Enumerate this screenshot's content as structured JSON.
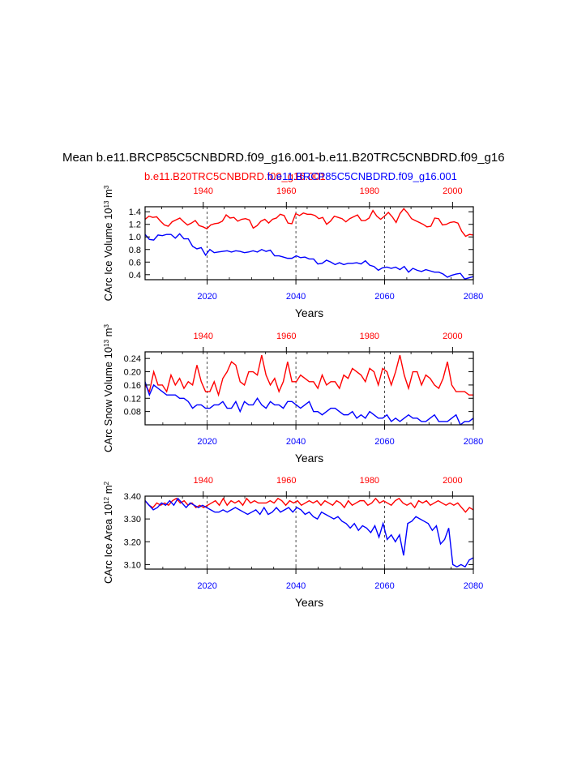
{
  "title": "Mean b.e11.BRCP85C5CNBDRD.f09_g16.001-b.e11.B20TRC5CNBDRD.f09_g16",
  "legend": {
    "red": "b.e11.B20TRC5CNBDRD.f09_g16.001",
    "blue": "b.e11.BRCP85C5CNBDRD.f09_g16.001"
  },
  "colors": {
    "red": "#ff0000",
    "blue": "#0000ff",
    "axis": "#000000"
  },
  "chart_data": [
    {
      "type": "line",
      "ylabel": "CArc Ice Volume 10",
      "ylabel_sup": "13",
      "ylabel_unit": " m",
      "ylabel_unit_sup": "3",
      "xlabel": "Years",
      "ylim": [
        0.32,
        1.48
      ],
      "yticks": [
        0.4,
        0.6,
        0.8,
        1.0,
        1.2,
        1.4
      ],
      "ytick_labels": [
        "0.4",
        "0.6",
        "0.8",
        "1.0",
        "1.2",
        "1.4"
      ],
      "bottom_axis": {
        "range": [
          2006,
          2080
        ],
        "ticks": [
          2020,
          2040,
          2060,
          2080
        ],
        "labels": [
          "2020",
          "2040",
          "2060",
          "2080"
        ]
      },
      "top_axis": {
        "range": [
          1926,
          2005
        ],
        "ticks": [
          1940,
          1960,
          1980,
          2000
        ],
        "labels": [
          "1940",
          "1960",
          "1980",
          "2000"
        ]
      },
      "grid_x": [
        2020,
        2040,
        2060
      ],
      "series": [
        {
          "name": "b.e11.B20TRC5CNBDRD.f09_g16.001",
          "color": "red",
          "axis": "top",
          "values": [
            1.28,
            1.33,
            1.31,
            1.32,
            1.25,
            1.19,
            1.17,
            1.24,
            1.27,
            1.3,
            1.24,
            1.19,
            1.22,
            1.26,
            1.18,
            1.16,
            1.13,
            1.19,
            1.21,
            1.22,
            1.25,
            1.35,
            1.3,
            1.31,
            1.25,
            1.28,
            1.29,
            1.27,
            1.14,
            1.18,
            1.25,
            1.28,
            1.22,
            1.28,
            1.3,
            1.36,
            1.34,
            1.22,
            1.21,
            1.37,
            1.34,
            1.38,
            1.36,
            1.36,
            1.34,
            1.29,
            1.31,
            1.2,
            1.25,
            1.33,
            1.31,
            1.29,
            1.24,
            1.29,
            1.32,
            1.35,
            1.26,
            1.26,
            1.3,
            1.42,
            1.33,
            1.28,
            1.33,
            1.39,
            1.32,
            1.23,
            1.37,
            1.45,
            1.38,
            1.29,
            1.26,
            1.23,
            1.2,
            1.16,
            1.17,
            1.3,
            1.29,
            1.19,
            1.2,
            1.23,
            1.24,
            1.22,
            1.09,
            1.01,
            1.04,
            1.03
          ]
        },
        {
          "name": "b.e11.BRCP85C5CNBDRD.f09_g16.001",
          "color": "blue",
          "axis": "bottom",
          "values": [
            1.04,
            0.96,
            0.95,
            1.03,
            1.02,
            1.04,
            1.04,
            0.98,
            1.05,
            0.97,
            0.97,
            0.85,
            0.81,
            0.83,
            0.71,
            0.8,
            0.75,
            0.76,
            0.77,
            0.78,
            0.76,
            0.78,
            0.77,
            0.75,
            0.76,
            0.78,
            0.76,
            0.8,
            0.77,
            0.79,
            0.7,
            0.7,
            0.68,
            0.66,
            0.66,
            0.7,
            0.67,
            0.68,
            0.65,
            0.65,
            0.57,
            0.58,
            0.63,
            0.6,
            0.56,
            0.59,
            0.56,
            0.58,
            0.58,
            0.59,
            0.57,
            0.62,
            0.55,
            0.53,
            0.47,
            0.51,
            0.52,
            0.5,
            0.52,
            0.48,
            0.53,
            0.44,
            0.5,
            0.47,
            0.45,
            0.48,
            0.46,
            0.44,
            0.44,
            0.41,
            0.36,
            0.39,
            0.41,
            0.42,
            0.33,
            0.35,
            0.37
          ]
        }
      ]
    },
    {
      "type": "line",
      "ylabel": "CArc Snow Volume 10",
      "ylabel_sup": "13",
      "ylabel_unit": " m",
      "ylabel_unit_sup": "3",
      "xlabel": "Years",
      "ylim": [
        0.04,
        0.26
      ],
      "yticks": [
        0.08,
        0.12,
        0.16,
        0.2,
        0.24
      ],
      "ytick_labels": [
        "0.08",
        "0.12",
        "0.16",
        "0.20",
        "0.24"
      ],
      "bottom_axis": {
        "range": [
          2006,
          2080
        ],
        "ticks": [
          2020,
          2040,
          2060,
          2080
        ],
        "labels": [
          "2020",
          "2040",
          "2060",
          "2080"
        ]
      },
      "top_axis": {
        "range": [
          1926,
          2005
        ],
        "ticks": [
          1940,
          1960,
          1980,
          2000
        ],
        "labels": [
          "1940",
          "1960",
          "1980",
          "2000"
        ]
      },
      "grid_x": [
        2020,
        2040,
        2060
      ],
      "series": [
        {
          "name": "b.e11.B20TRC5CNBDRD.f09_g16.001",
          "color": "red",
          "axis": "top",
          "values": [
            0.16,
            0.14,
            0.2,
            0.16,
            0.16,
            0.14,
            0.19,
            0.16,
            0.18,
            0.15,
            0.17,
            0.16,
            0.22,
            0.17,
            0.14,
            0.14,
            0.17,
            0.13,
            0.18,
            0.2,
            0.23,
            0.22,
            0.17,
            0.16,
            0.2,
            0.2,
            0.19,
            0.25,
            0.19,
            0.16,
            0.18,
            0.14,
            0.17,
            0.23,
            0.17,
            0.17,
            0.19,
            0.18,
            0.17,
            0.17,
            0.15,
            0.19,
            0.16,
            0.17,
            0.17,
            0.15,
            0.19,
            0.18,
            0.21,
            0.2,
            0.19,
            0.17,
            0.21,
            0.2,
            0.16,
            0.21,
            0.2,
            0.16,
            0.2,
            0.25,
            0.19,
            0.15,
            0.2,
            0.2,
            0.16,
            0.19,
            0.18,
            0.16,
            0.15,
            0.18,
            0.23,
            0.16,
            0.14,
            0.14,
            0.14,
            0.13,
            0.13
          ]
        },
        {
          "name": "b.e11.BRCP85C5CNBDRD.f09_g16.001",
          "color": "blue",
          "axis": "bottom",
          "values": [
            0.17,
            0.13,
            0.16,
            0.15,
            0.14,
            0.13,
            0.13,
            0.13,
            0.12,
            0.12,
            0.11,
            0.09,
            0.1,
            0.1,
            0.09,
            0.09,
            0.1,
            0.1,
            0.11,
            0.09,
            0.09,
            0.11,
            0.08,
            0.11,
            0.1,
            0.1,
            0.12,
            0.1,
            0.09,
            0.11,
            0.1,
            0.1,
            0.09,
            0.11,
            0.11,
            0.1,
            0.09,
            0.1,
            0.11,
            0.08,
            0.08,
            0.07,
            0.08,
            0.09,
            0.09,
            0.08,
            0.07,
            0.07,
            0.08,
            0.06,
            0.07,
            0.06,
            0.08,
            0.07,
            0.06,
            0.06,
            0.07,
            0.05,
            0.06,
            0.05,
            0.06,
            0.07,
            0.06,
            0.06,
            0.05,
            0.05,
            0.06,
            0.07,
            0.05,
            0.05,
            0.05,
            0.06,
            0.07,
            0.04,
            0.05,
            0.05,
            0.06
          ]
        }
      ]
    },
    {
      "type": "line",
      "ylabel": "CArc Ice Area 10",
      "ylabel_sup": "12",
      "ylabel_unit": " m",
      "ylabel_unit_sup": "2",
      "xlabel": "Years",
      "ylim": [
        3.08,
        3.4
      ],
      "yticks": [
        3.1,
        3.2,
        3.3,
        3.4
      ],
      "ytick_labels": [
        "3.10",
        "3.20",
        "3.30",
        "3.40"
      ],
      "bottom_axis": {
        "range": [
          2006,
          2080
        ],
        "ticks": [
          2020,
          2040,
          2060,
          2080
        ],
        "labels": [
          "2020",
          "2040",
          "2060",
          "2080"
        ]
      },
      "top_axis": {
        "range": [
          1926,
          2005
        ],
        "ticks": [
          1940,
          1960,
          1980,
          2000
        ],
        "labels": [
          "1940",
          "1960",
          "1980",
          "2000"
        ]
      },
      "grid_x": [
        2020,
        2040,
        2060
      ],
      "series": [
        {
          "name": "b.e11.B20TRC5CNBDRD.f09_g16.001",
          "color": "red",
          "axis": "top",
          "values": [
            3.38,
            3.36,
            3.35,
            3.37,
            3.36,
            3.37,
            3.36,
            3.38,
            3.39,
            3.37,
            3.38,
            3.36,
            3.37,
            3.35,
            3.36,
            3.35,
            3.36,
            3.37,
            3.38,
            3.36,
            3.39,
            3.36,
            3.38,
            3.37,
            3.38,
            3.36,
            3.39,
            3.37,
            3.38,
            3.37,
            3.37,
            3.37,
            3.38,
            3.37,
            3.39,
            3.38,
            3.36,
            3.38,
            3.37,
            3.38,
            3.36,
            3.37,
            3.38,
            3.37,
            3.38,
            3.36,
            3.38,
            3.37,
            3.36,
            3.38,
            3.37,
            3.35,
            3.38,
            3.36,
            3.37,
            3.38,
            3.38,
            3.36,
            3.37,
            3.39,
            3.37,
            3.38,
            3.37,
            3.36,
            3.38,
            3.39,
            3.37,
            3.36,
            3.37,
            3.35,
            3.38,
            3.37,
            3.38,
            3.36,
            3.37,
            3.38,
            3.37,
            3.36,
            3.37,
            3.36,
            3.37,
            3.35,
            3.33,
            3.35,
            3.34
          ]
        },
        {
          "name": "b.e11.BRCP85C5CNBDRD.f09_g16.001",
          "color": "blue",
          "axis": "bottom",
          "values": [
            3.38,
            3.36,
            3.34,
            3.35,
            3.37,
            3.36,
            3.38,
            3.36,
            3.39,
            3.37,
            3.35,
            3.37,
            3.36,
            3.35,
            3.36,
            3.35,
            3.34,
            3.33,
            3.33,
            3.34,
            3.33,
            3.34,
            3.35,
            3.34,
            3.33,
            3.32,
            3.33,
            3.34,
            3.32,
            3.35,
            3.32,
            3.33,
            3.35,
            3.33,
            3.34,
            3.35,
            3.33,
            3.35,
            3.34,
            3.32,
            3.33,
            3.31,
            3.3,
            3.33,
            3.32,
            3.31,
            3.3,
            3.31,
            3.29,
            3.28,
            3.26,
            3.28,
            3.25,
            3.27,
            3.26,
            3.24,
            3.27,
            3.22,
            3.28,
            3.21,
            3.23,
            3.2,
            3.23,
            3.14,
            3.28,
            3.29,
            3.31,
            3.3,
            3.29,
            3.28,
            3.25,
            3.27,
            3.19,
            3.21,
            3.26,
            3.1,
            3.09,
            3.1,
            3.09,
            3.12,
            3.13
          ]
        }
      ]
    }
  ]
}
